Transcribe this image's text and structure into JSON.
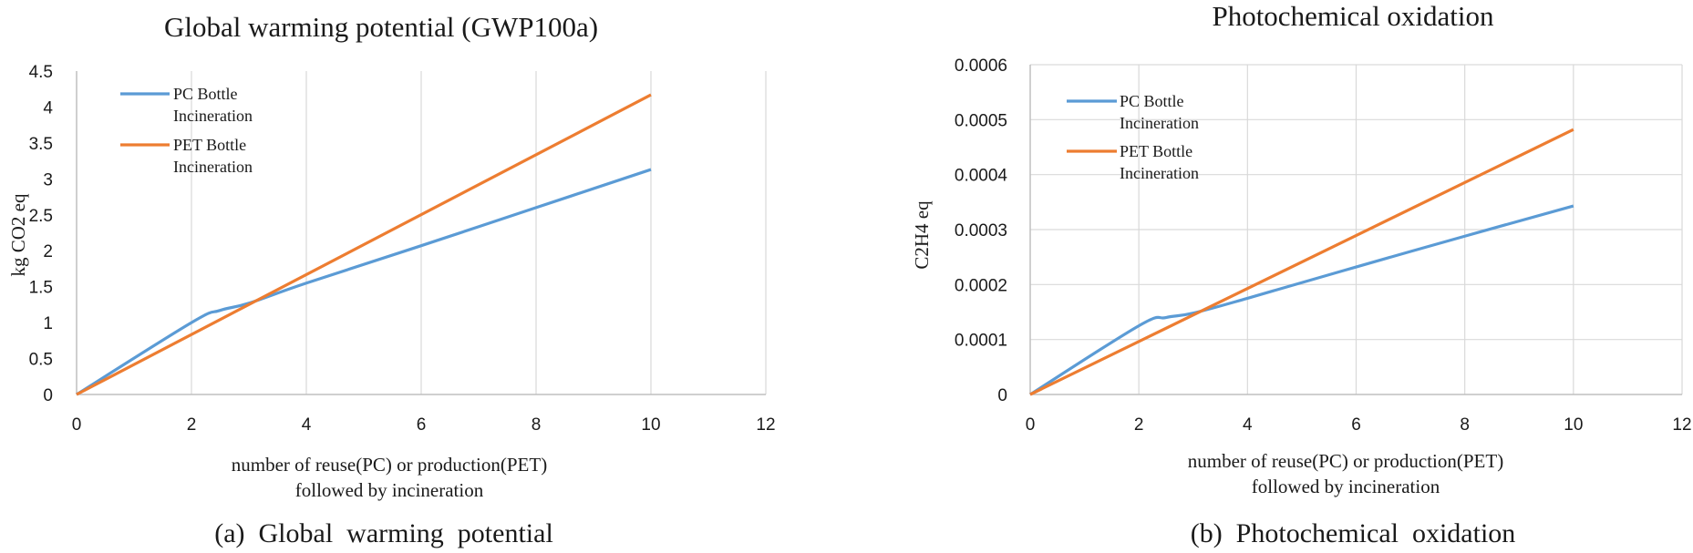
{
  "colors": {
    "pc": "#5B9BD5",
    "pet": "#ED7D31",
    "grid": "#D9D9D9",
    "axis": "#BFBFBF",
    "text": "#1a1a1a"
  },
  "chart_data": [
    {
      "type": "line",
      "title": "Global warming potential (GWP100a)",
      "xlabel": [
        "number of reuse(PC) or production(PET)",
        "followed by incineration"
      ],
      "ylabel": "kg CO2 eq",
      "caption": "(a)  Global  warming  potential",
      "xlim": [
        0,
        12
      ],
      "ylim": [
        0,
        4.5
      ],
      "x_ticks": [
        0,
        2,
        4,
        6,
        8,
        10,
        12
      ],
      "x_tick_labels": [
        "0",
        "2",
        "4",
        "6",
        "8",
        "10",
        "12"
      ],
      "y_ticks": [
        0,
        0.5,
        1,
        1.5,
        2,
        2.5,
        3,
        3.5,
        4,
        4.5
      ],
      "y_tick_labels": [
        "0",
        "0.5",
        "1",
        "1.5",
        "2",
        "2.5",
        "3",
        "3.5",
        "4",
        "4.5"
      ],
      "grid": "vertical",
      "legend": "top-left",
      "series": [
        {
          "name": [
            "PC Bottle",
            "Incineration"
          ],
          "color_key": "pc",
          "x": [
            0,
            2,
            2.5,
            3,
            4,
            6,
            8,
            10
          ],
          "y": [
            0,
            1.0,
            1.17,
            1.27,
            1.55,
            2.07,
            2.6,
            3.13
          ]
        },
        {
          "name": [
            "PET Bottle",
            "Incineration"
          ],
          "color_key": "pet",
          "x": [
            0,
            10
          ],
          "y": [
            0,
            4.17
          ]
        }
      ]
    },
    {
      "type": "line",
      "title": "Photochemical oxidation",
      "xlabel": [
        "number of reuse(PC) or production(PET)",
        "followed by incineration"
      ],
      "ylabel": "C2H4 eq",
      "caption": "(b)  Photochemical  oxidation",
      "xlim": [
        0,
        12
      ],
      "ylim": [
        0,
        0.0006
      ],
      "x_ticks": [
        0,
        2,
        4,
        6,
        8,
        10,
        12
      ],
      "x_tick_labels": [
        "0",
        "2",
        "4",
        "6",
        "8",
        "10",
        "12"
      ],
      "y_ticks": [
        0,
        0.0001,
        0.0002,
        0.0003,
        0.0004,
        0.0005,
        0.0006
      ],
      "y_tick_labels": [
        "0",
        "0.0001",
        "0.0002",
        "0.0003",
        "0.0004",
        "0.0005",
        "0.0006"
      ],
      "grid": "both",
      "legend": "top-left",
      "series": [
        {
          "name": [
            "PC Bottle",
            "Incineration"
          ],
          "color_key": "pc",
          "x": [
            0,
            2,
            2.5,
            3,
            4,
            6,
            8,
            10
          ],
          "y": [
            0,
            0.000125,
            0.00014,
            0.000148,
            0.000175,
            0.000232,
            0.000288,
            0.000343
          ]
        },
        {
          "name": [
            "PET Bottle",
            "Incineration"
          ],
          "color_key": "pet",
          "x": [
            0,
            10
          ],
          "y": [
            0,
            0.000482
          ]
        }
      ]
    }
  ]
}
